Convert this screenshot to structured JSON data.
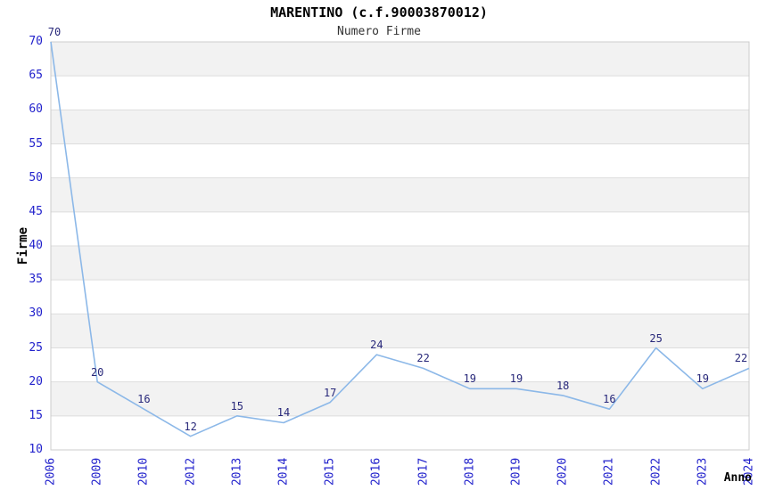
{
  "chart_data": {
    "type": "line",
    "title": "MARENTINO (c.f.90003870012)",
    "subtitle": "Numero Firme",
    "xlabel": "Anno",
    "ylabel": "Firme",
    "categories": [
      "2006",
      "2009",
      "2010",
      "2012",
      "2013",
      "2014",
      "2015",
      "2016",
      "2017",
      "2018",
      "2019",
      "2020",
      "2021",
      "2022",
      "2023",
      "2024"
    ],
    "values": [
      70,
      20,
      16,
      12,
      15,
      14,
      17,
      24,
      22,
      19,
      19,
      18,
      16,
      25,
      19,
      22
    ],
    "ylim": [
      10,
      70
    ],
    "ytick_step": 5,
    "grid": "horizontal-bands",
    "legend_position": "none",
    "data_labels": "above-points",
    "colors": {
      "line": "#8cb8e8",
      "band_fill": "#f2f2f2",
      "gridline": "#dddddd",
      "plot_border": "#cccccc",
      "tick_label": "#2222cc",
      "data_label": "#28287a",
      "title": "#000000",
      "subtitle": "#333333",
      "background": "#ffffff"
    }
  }
}
